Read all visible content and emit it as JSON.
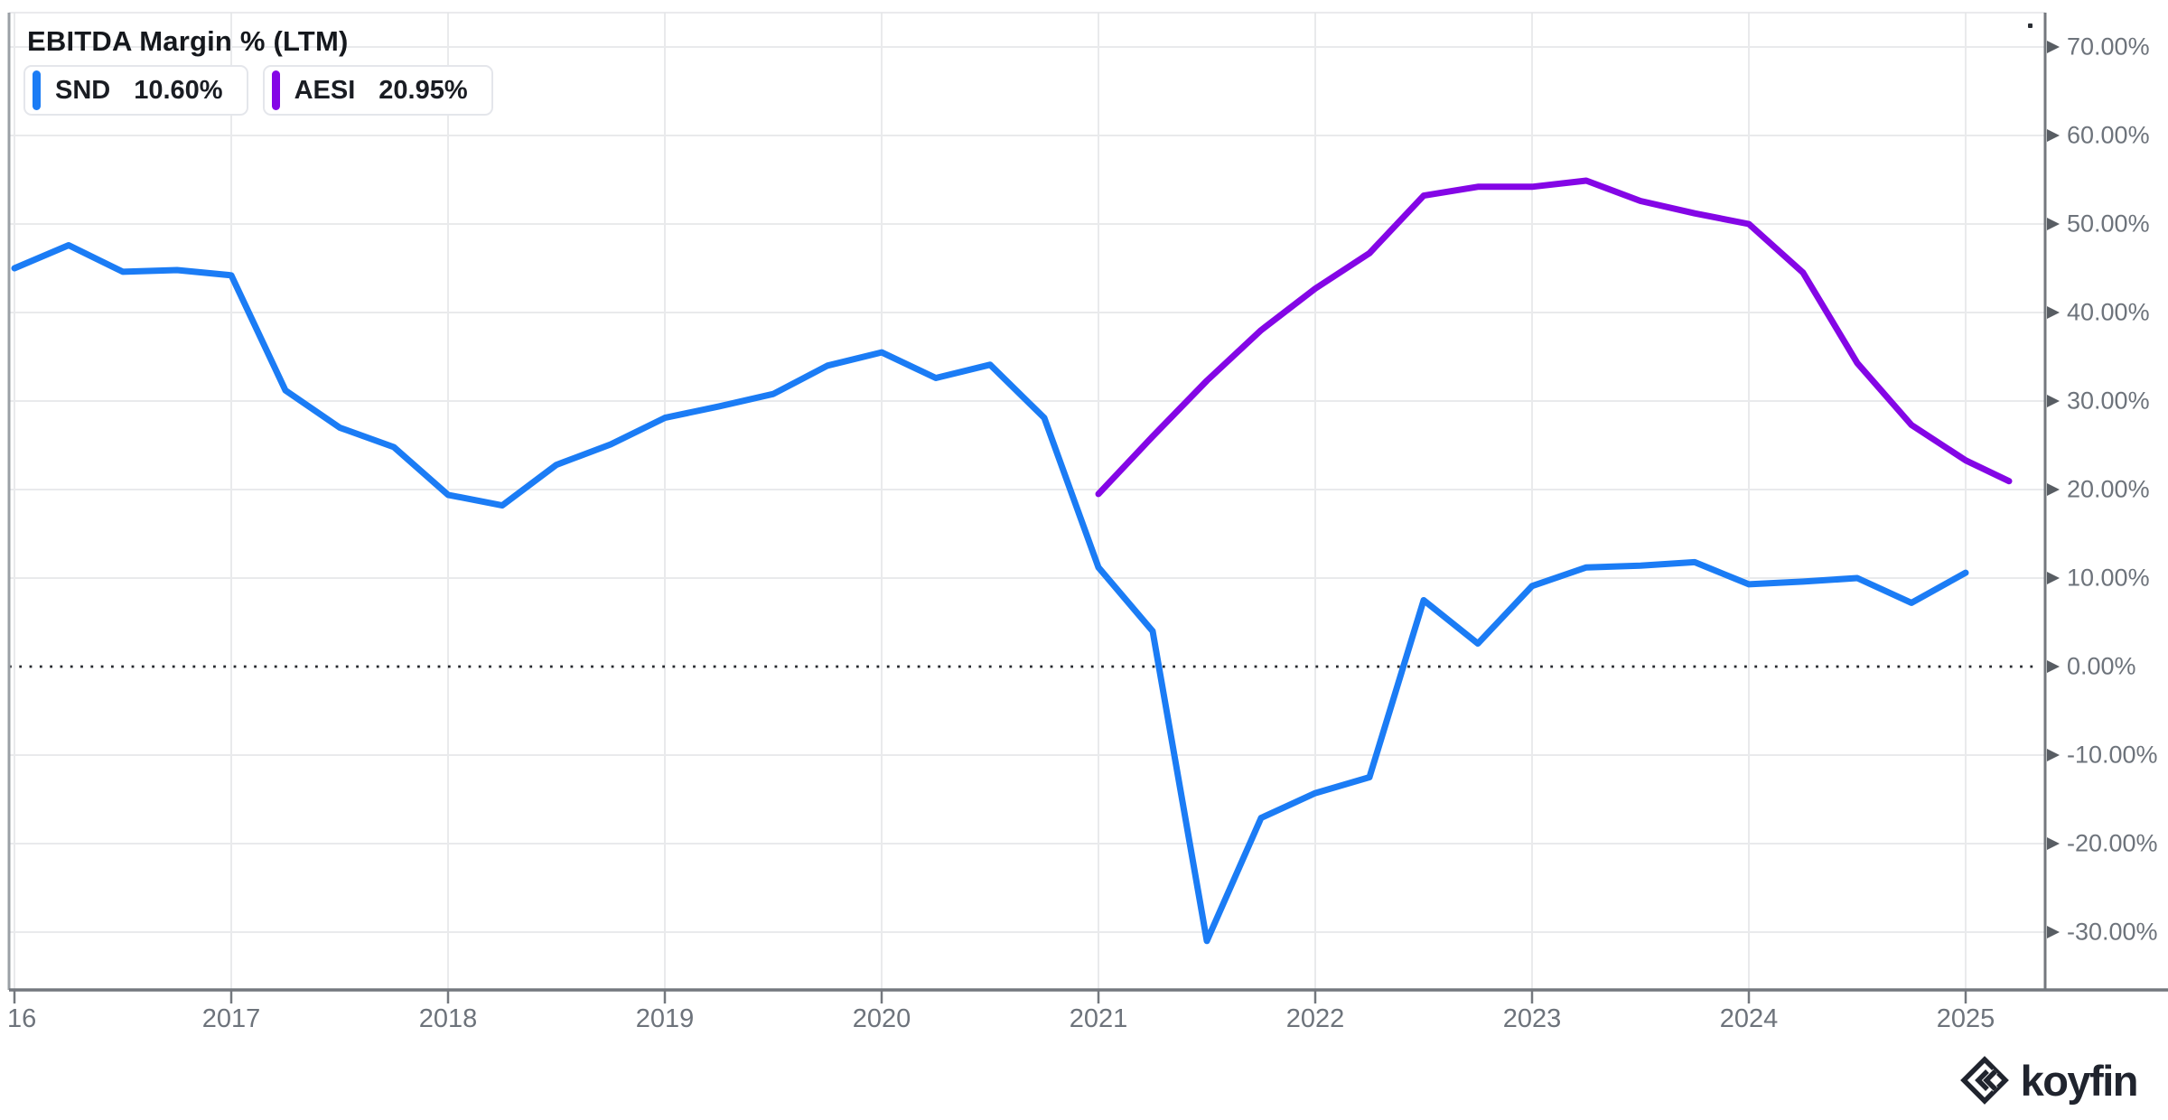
{
  "header": {
    "title": "EBITDA Margin % (LTM)"
  },
  "legend": [
    {
      "ticker": "SND",
      "value": "10.60%",
      "color": "#1b7cf5"
    },
    {
      "ticker": "AESI",
      "value": "20.95%",
      "color": "#8406e6"
    }
  ],
  "watermark": {
    "brand": "koyfin"
  },
  "chart_data": {
    "type": "line",
    "title": "EBITDA Margin % (LTM)",
    "x_axis": {
      "tick_labels": [
        "16",
        "2017",
        "2018",
        "2019",
        "2020",
        "2021",
        "2022",
        "2023",
        "2024",
        "2025"
      ],
      "tick_years": [
        2016,
        2017,
        2018,
        2019,
        2020,
        2021,
        2022,
        2023,
        2024,
        2025
      ]
    },
    "y_axis": {
      "tick_values": [
        70,
        60,
        50,
        40,
        30,
        20,
        10,
        0,
        -10,
        -20,
        -30
      ],
      "tick_format": "percent_2dp",
      "ylim": [
        -36.5,
        73.9
      ],
      "zero_line": "dotted"
    },
    "grid": "on",
    "legend_position": "top-left",
    "series": [
      {
        "name": "SND",
        "color": "#1b7cf5",
        "last_value_label": "10.60%",
        "points": [
          [
            2016.0,
            45.0
          ],
          [
            2016.25,
            47.6
          ],
          [
            2016.5,
            44.6
          ],
          [
            2016.75,
            44.8
          ],
          [
            2017.0,
            44.2
          ],
          [
            2017.25,
            31.2
          ],
          [
            2017.5,
            27.0
          ],
          [
            2017.75,
            24.8
          ],
          [
            2018.0,
            19.4
          ],
          [
            2018.25,
            18.2
          ],
          [
            2018.5,
            22.8
          ],
          [
            2018.75,
            25.1
          ],
          [
            2019.0,
            28.1
          ],
          [
            2019.25,
            29.4
          ],
          [
            2019.5,
            30.8
          ],
          [
            2019.75,
            34.0
          ],
          [
            2020.0,
            35.5
          ],
          [
            2020.25,
            32.6
          ],
          [
            2020.5,
            34.1
          ],
          [
            2020.75,
            28.1
          ],
          [
            2021.0,
            11.2
          ],
          [
            2021.25,
            4.0
          ],
          [
            2021.5,
            -31.0
          ],
          [
            2021.75,
            -17.1
          ],
          [
            2022.0,
            -14.3
          ],
          [
            2022.25,
            -12.5
          ],
          [
            2022.5,
            7.5
          ],
          [
            2022.75,
            2.6
          ],
          [
            2023.0,
            9.1
          ],
          [
            2023.25,
            11.2
          ],
          [
            2023.5,
            11.4
          ],
          [
            2023.75,
            11.8
          ],
          [
            2024.0,
            9.3
          ],
          [
            2024.25,
            9.6
          ],
          [
            2024.5,
            10.0
          ],
          [
            2024.75,
            7.2
          ],
          [
            2025.0,
            10.6
          ]
        ]
      },
      {
        "name": "AESI",
        "color": "#8406e6",
        "last_value_label": "20.95%",
        "points": [
          [
            2021.0,
            19.5
          ],
          [
            2021.25,
            26.0
          ],
          [
            2021.5,
            32.3
          ],
          [
            2021.75,
            38.0
          ],
          [
            2022.0,
            42.7
          ],
          [
            2022.25,
            46.7
          ],
          [
            2022.5,
            53.2
          ],
          [
            2022.75,
            54.2
          ],
          [
            2023.0,
            54.2
          ],
          [
            2023.25,
            54.9
          ],
          [
            2023.5,
            52.6
          ],
          [
            2023.75,
            51.2
          ],
          [
            2024.0,
            50.0
          ],
          [
            2024.25,
            44.5
          ],
          [
            2024.5,
            34.3
          ],
          [
            2024.75,
            27.3
          ],
          [
            2025.0,
            23.3
          ],
          [
            2025.2,
            20.95
          ]
        ]
      }
    ]
  }
}
